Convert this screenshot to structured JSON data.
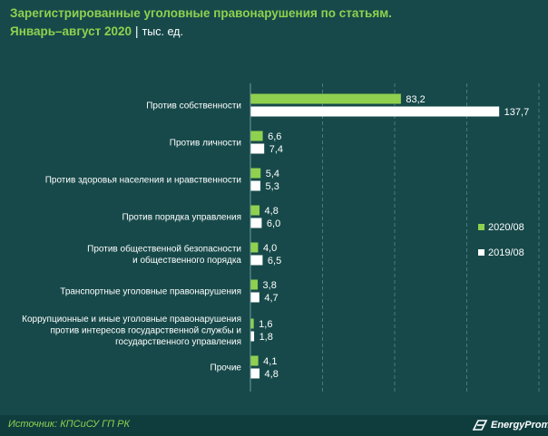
{
  "header": {
    "title": "Зарегистрированные уголовные правонарушения по статьям.",
    "period": "Январь–август 2020",
    "separator": "|",
    "unit": "тыс. ед."
  },
  "footer": {
    "source": "Источник: КПСиСУ ГП РК",
    "brand": "EnergyProm"
  },
  "colors": {
    "background": "#17494a",
    "series_2020": "#8fd14f",
    "series_2019": "#ffffff",
    "accent_text": "#8fd14f"
  },
  "chart_data": {
    "type": "bar",
    "orientation": "horizontal",
    "title": "Зарегистрированные уголовные правонарушения по статьям. Январь–август 2020",
    "unit": "тыс. ед.",
    "categories": [
      [
        "Против собственности"
      ],
      [
        "Против личности"
      ],
      [
        "Против здоровья населения и нравственности"
      ],
      [
        "Против порядка управления"
      ],
      [
        "Против общественной безопасности",
        "и общественного порядка"
      ],
      [
        "Транспортные уголовные правонарушения"
      ],
      [
        "Коррупционные и иные уголовные правонарушения",
        "против интересов государственной службы и",
        "государственного управления"
      ],
      [
        "Прочие"
      ]
    ],
    "series": [
      {
        "name": "2020/08",
        "color": "#8fd14f",
        "values": [
          83.2,
          6.6,
          5.4,
          4.8,
          4.0,
          3.8,
          1.6,
          4.1
        ],
        "labels": [
          "83,2",
          "6,6",
          "5,4",
          "4,8",
          "4,0",
          "3,8",
          "1,6",
          "4,1"
        ]
      },
      {
        "name": "2019/08",
        "color": "#ffffff",
        "values": [
          137.7,
          7.4,
          5.3,
          6.0,
          6.5,
          4.7,
          1.8,
          4.8
        ],
        "labels": [
          "137,7",
          "7,4",
          "5,3",
          "6,0",
          "6,5",
          "4,7",
          "1,8",
          "4,8"
        ]
      }
    ],
    "xlim": [
      0,
      160
    ],
    "gridlines": [
      40,
      80,
      120,
      160
    ],
    "grid": "dashed vertical",
    "legend_position": "right"
  }
}
